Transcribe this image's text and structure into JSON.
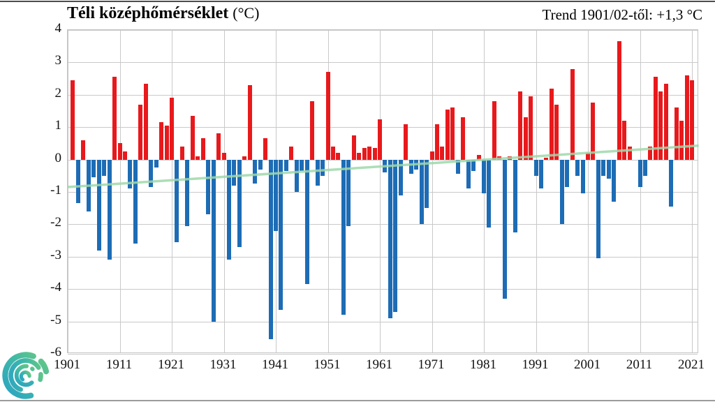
{
  "title": {
    "main": "Téli középhőmérséklet",
    "unit": "(°C)"
  },
  "trend_label": "Trend 1901/02-től: +1,3 °C",
  "colors": {
    "positive_bar": "#e8191c",
    "negative_bar": "#1d6cb5",
    "trend_line": "#9fd8aa",
    "grid": "#c9c9c9",
    "text": "#000000",
    "logo_teal": "#2ea7bf",
    "logo_green": "#62c687"
  },
  "logo_name": "swirl-logo",
  "chart_data": {
    "type": "bar",
    "title": "Téli középhőmérséklet (°C)",
    "xlabel": "",
    "ylabel": "",
    "ylim": [
      -6,
      4
    ],
    "grid": true,
    "yticks": [
      4,
      3,
      2,
      1,
      0,
      -1,
      -2,
      -3,
      -4,
      -5,
      -6
    ],
    "xticks": [
      1901,
      1911,
      1921,
      1931,
      1941,
      1951,
      1961,
      1971,
      1981,
      1991,
      2001,
      2011,
      2021
    ],
    "annotation": "Trend 1901/02-től: +1,3 °C",
    "x": [
      1902,
      1903,
      1904,
      1905,
      1906,
      1907,
      1908,
      1909,
      1910,
      1911,
      1912,
      1913,
      1914,
      1915,
      1916,
      1917,
      1918,
      1919,
      1920,
      1921,
      1922,
      1923,
      1924,
      1925,
      1926,
      1927,
      1928,
      1929,
      1930,
      1931,
      1932,
      1933,
      1934,
      1935,
      1936,
      1937,
      1938,
      1939,
      1940,
      1941,
      1942,
      1943,
      1944,
      1945,
      1946,
      1947,
      1948,
      1949,
      1950,
      1951,
      1952,
      1953,
      1954,
      1955,
      1956,
      1957,
      1958,
      1959,
      1960,
      1961,
      1962,
      1963,
      1964,
      1965,
      1966,
      1967,
      1968,
      1969,
      1970,
      1971,
      1972,
      1973,
      1974,
      1975,
      1976,
      1977,
      1978,
      1979,
      1980,
      1981,
      1982,
      1983,
      1984,
      1985,
      1986,
      1987,
      1988,
      1989,
      1990,
      1991,
      1992,
      1993,
      1994,
      1995,
      1996,
      1997,
      1998,
      1999,
      2000,
      2001,
      2002,
      2003,
      2004,
      2005,
      2006,
      2007,
      2008,
      2009,
      2010,
      2011,
      2012,
      2013,
      2014,
      2015,
      2016,
      2017,
      2018,
      2019,
      2020,
      2021
    ],
    "values": [
      2.45,
      -1.35,
      0.6,
      -1.6,
      -0.55,
      -2.8,
      -0.5,
      -3.1,
      2.55,
      0.5,
      0.25,
      -0.9,
      -2.6,
      1.7,
      2.35,
      -0.85,
      -0.25,
      1.15,
      1.05,
      1.9,
      -2.55,
      0.4,
      -2.05,
      1.35,
      0.1,
      0.65,
      -1.7,
      -5.0,
      0.8,
      0.2,
      -3.1,
      -0.8,
      -2.7,
      0.1,
      2.3,
      -0.75,
      -0.3,
      0.65,
      -5.55,
      -2.2,
      -4.65,
      -0.35,
      0.4,
      -1.0,
      -0.35,
      -3.85,
      1.8,
      -0.8,
      -0.5,
      2.7,
      0.4,
      0.2,
      -4.8,
      -2.05,
      0.75,
      0.2,
      0.35,
      0.4,
      0.35,
      1.25,
      -0.4,
      -4.9,
      -4.7,
      -1.1,
      1.1,
      -0.45,
      -0.3,
      -2.0,
      -1.5,
      0.25,
      1.1,
      0.4,
      1.55,
      1.6,
      -0.45,
      1.3,
      -0.9,
      -0.35,
      0.15,
      -1.05,
      -2.1,
      1.8,
      0.1,
      -4.3,
      0.1,
      -2.25,
      2.1,
      1.3,
      1.95,
      -0.5,
      -0.9,
      0.05,
      2.2,
      1.7,
      -2.0,
      -0.85,
      2.8,
      -0.5,
      -1.05,
      0.2,
      1.75,
      -3.05,
      -0.5,
      -0.6,
      -1.3,
      3.65,
      1.2,
      0.4,
      0.0,
      -0.85,
      -0.5,
      0.4,
      2.55,
      2.1,
      2.35,
      -1.45,
      1.6,
      1.2,
      2.6,
      2.45
    ],
    "trend_line": {
      "x_start": 1901,
      "value_start": -0.85,
      "x_end": 2022.3,
      "value_end": 0.43
    },
    "legend": null
  }
}
